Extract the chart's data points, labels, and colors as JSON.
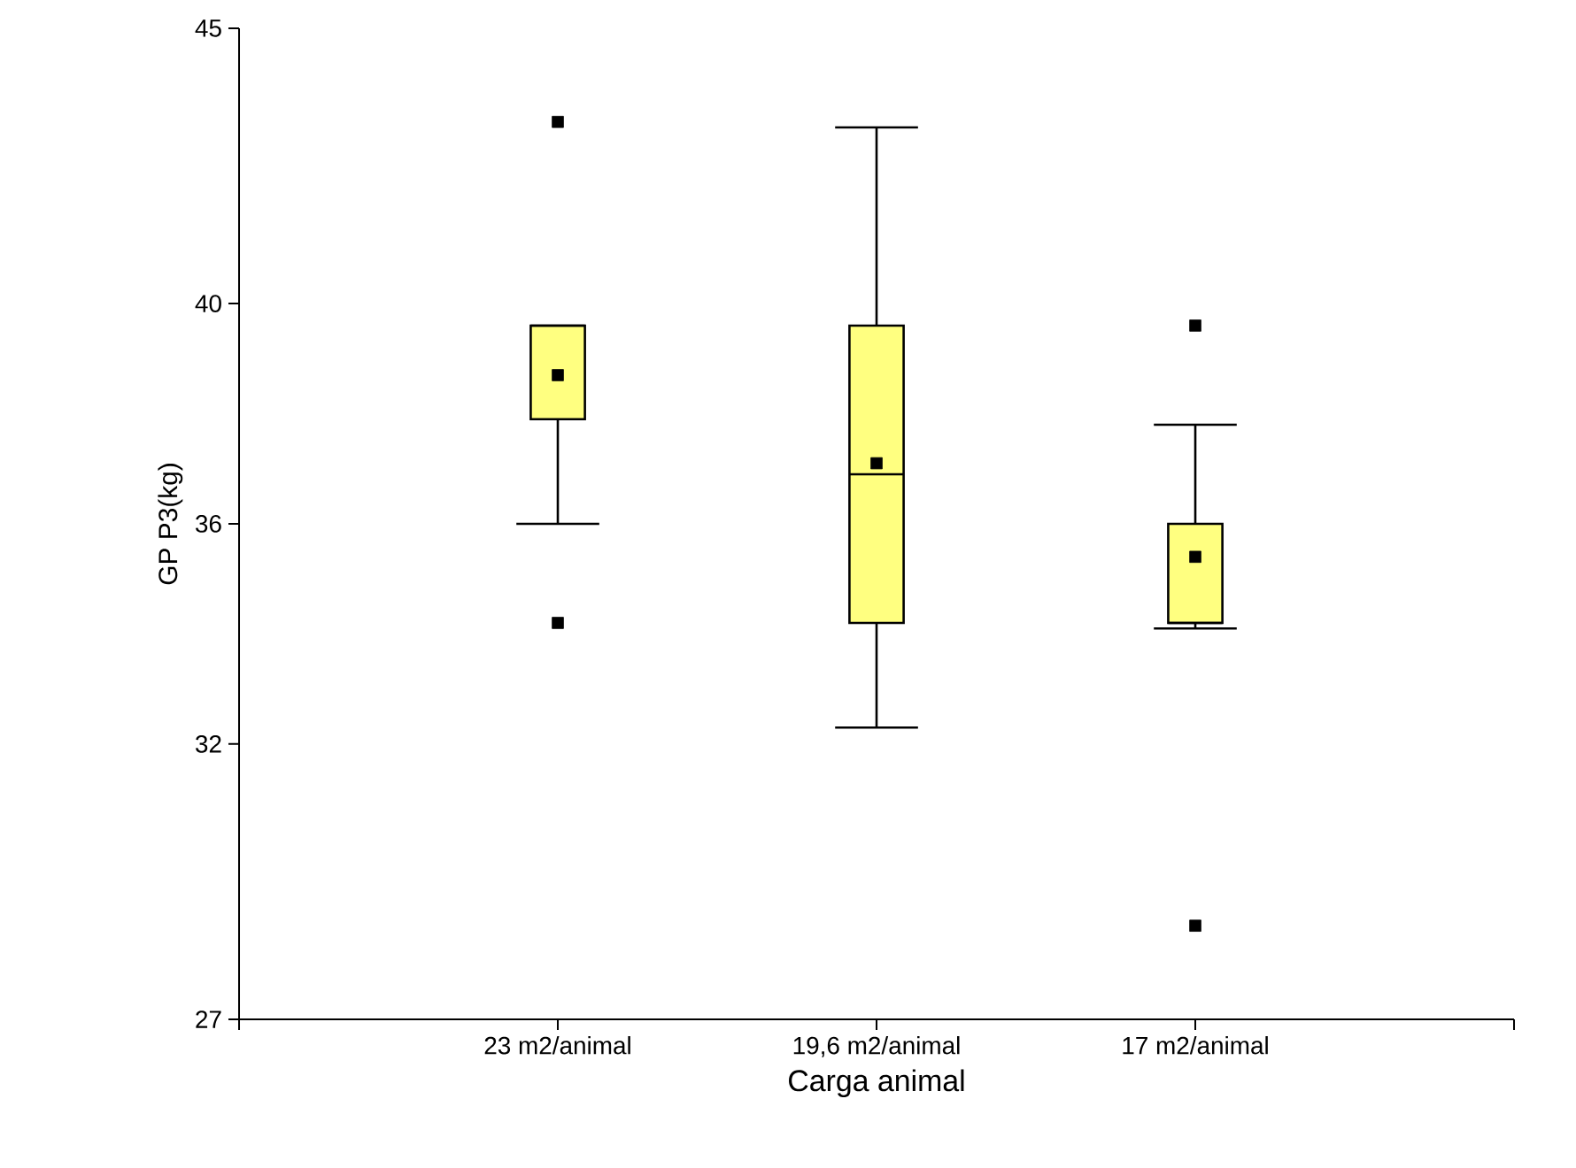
{
  "chart_data": {
    "type": "box",
    "xlabel": "Carga animal",
    "ylabel": "GP P3(kg)",
    "categories": [
      "23 m2/animal",
      "19,6 m2/animal",
      "17 m2/animal"
    ],
    "color": "#ffff80",
    "ylim": [
      27,
      45
    ],
    "yticks": [
      27,
      32,
      36,
      40,
      45
    ],
    "boxes": [
      {
        "low": 36.0,
        "q1": 37.9,
        "median": 39.6,
        "q3": 39.6,
        "high": 39.6,
        "mean": 38.7,
        "outliers": [
          43.3,
          34.2
        ]
      },
      {
        "low": 32.3,
        "q1": 34.2,
        "median": 36.9,
        "q3": 39.6,
        "high": 43.2,
        "mean": 37.1
      },
      {
        "low": 34.1,
        "q1": 34.2,
        "median": 34.2,
        "q3": 36.0,
        "high": 37.8,
        "mean": 35.4,
        "outliers": [
          39.6,
          28.7
        ]
      }
    ]
  }
}
